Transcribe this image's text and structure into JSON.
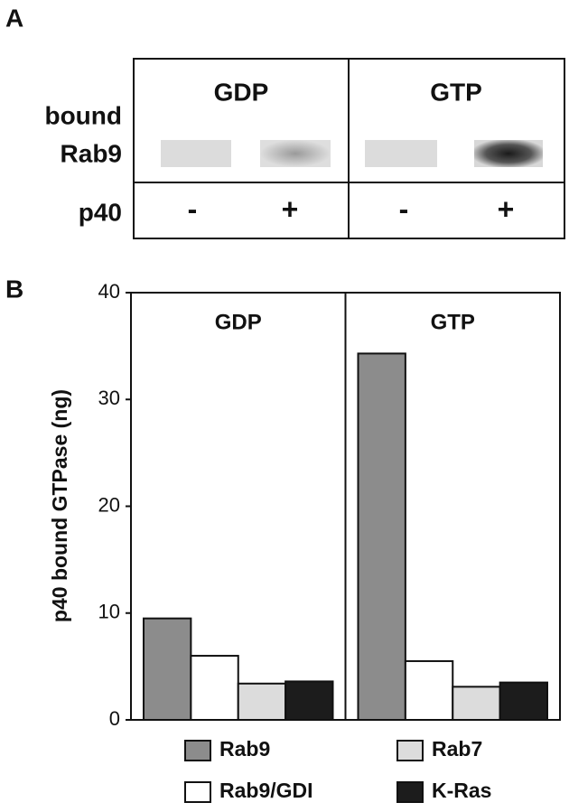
{
  "panel_a": {
    "label": "A",
    "states": [
      "GDP",
      "GTP"
    ],
    "bound_label": [
      "bound",
      "Rab9"
    ],
    "p40_label": "p40",
    "signs": [
      "-",
      "+",
      "-",
      "+"
    ]
  },
  "chart_data": {
    "type": "bar",
    "panel_label": "B",
    "y_label": "p40 bound GTPase (ng)",
    "categories": [
      "GDP",
      "GTP"
    ],
    "series": [
      {
        "name": "Rab9",
        "color": "#8c8c8c",
        "values": [
          9.5,
          34.3
        ]
      },
      {
        "name": "Rab9/GDI",
        "color": "#ffffff",
        "values": [
          6.0,
          5.5
        ]
      },
      {
        "name": "Rab7",
        "color": "#dcdcdc",
        "values": [
          3.4,
          3.1
        ]
      },
      {
        "name": "K-Ras",
        "color": "#1c1c1c",
        "values": [
          3.6,
          3.5
        ]
      }
    ],
    "ylim": [
      0,
      40
    ],
    "yticks": [
      0,
      10,
      20,
      30,
      40
    ]
  }
}
